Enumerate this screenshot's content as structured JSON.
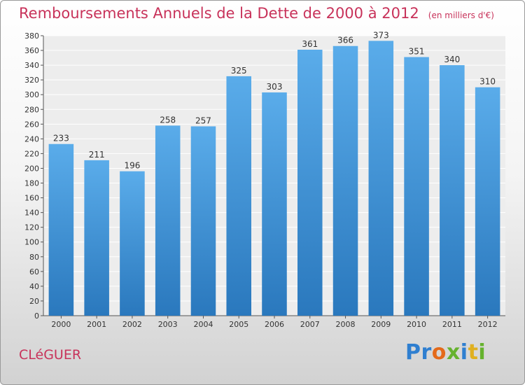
{
  "chart_data": {
    "type": "bar",
    "title": "Remboursements Annuels de la Dette de 2000 à 2012",
    "unit": "(en milliers d'€)",
    "categories": [
      "2000",
      "2001",
      "2002",
      "2003",
      "2004",
      "2005",
      "2006",
      "2007",
      "2008",
      "2009",
      "2010",
      "2011",
      "2012"
    ],
    "values": [
      233,
      211,
      196,
      258,
      257,
      325,
      303,
      361,
      366,
      373,
      351,
      340,
      310
    ],
    "ylim": [
      0,
      380
    ],
    "ytick_step": 20,
    "grid": true,
    "xlabel": "",
    "ylabel": "",
    "bar_color_top": "#5aacea",
    "bar_color_bottom": "#2a78bd"
  },
  "footer": {
    "city": "CLéGUER",
    "brand": "Proxiti",
    "brand_colors": [
      "#2f7fd0",
      "#2f7fd0",
      "#e46a1a",
      "#66b22e",
      "#2f7fd0",
      "#e0b020",
      "#66b22e"
    ]
  }
}
